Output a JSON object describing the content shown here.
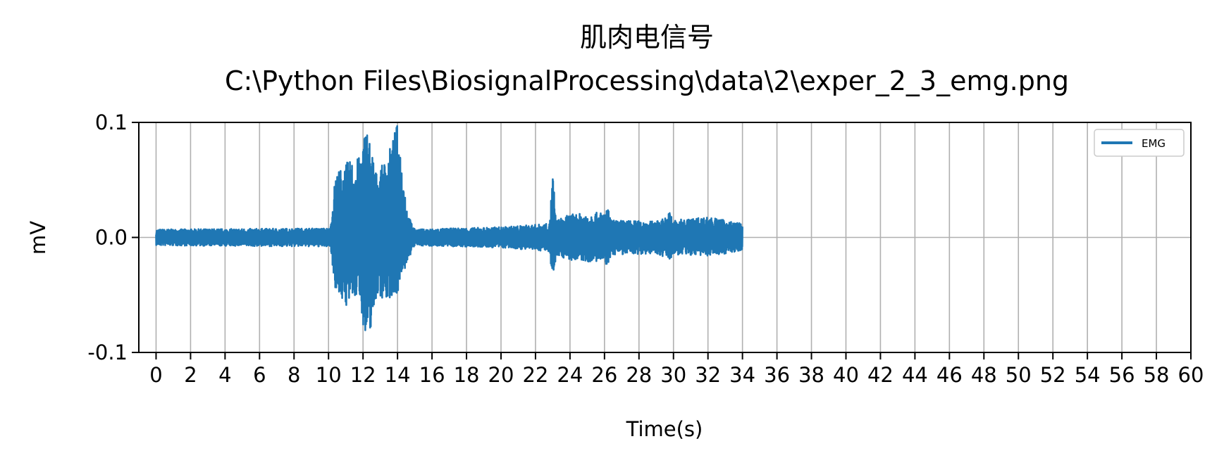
{
  "chart_data": {
    "type": "line",
    "title": "肌肉电信号",
    "subtitle": "C:\\Python Files\\BiosignalProcessing\\data\\2\\exper_2_3_emg.png",
    "xlabel": "Time(s)",
    "ylabel": "mV",
    "xlim": [
      -1,
      60
    ],
    "ylim": [
      -0.1,
      0.1
    ],
    "grid": true,
    "legend_position": "top-right",
    "x_ticks": [
      0,
      2,
      4,
      6,
      8,
      10,
      12,
      14,
      16,
      18,
      20,
      22,
      24,
      26,
      28,
      30,
      32,
      34,
      36,
      38,
      40,
      42,
      44,
      46,
      48,
      50,
      52,
      54,
      56,
      58,
      60
    ],
    "x_tick_labels": [
      "0",
      "2",
      "4",
      "6",
      "8",
      "10",
      "12",
      "14",
      "16",
      "18",
      "20",
      "22",
      "24",
      "26",
      "28",
      "30",
      "32",
      "34",
      "36",
      "38",
      "40",
      "42",
      "44",
      "46",
      "48",
      "50",
      "52",
      "54",
      "56",
      "58",
      "60"
    ],
    "y_ticks": [
      -0.1,
      0.0,
      0.1
    ],
    "y_tick_labels": [
      "-0.1",
      "0.0",
      "0.1"
    ],
    "signal_range_s": [
      0,
      34
    ],
    "series": [
      {
        "name": "EMG",
        "color": "#1f77b4",
        "envelope": {
          "t": [
            0,
            10.1,
            10.4,
            11.0,
            11.8,
            12.2,
            12.8,
            13.4,
            14.0,
            14.6,
            15.0,
            20.0,
            22.8,
            23.0,
            23.2,
            24.0,
            26.0,
            26.2,
            26.4,
            29.0,
            29.6,
            29.8,
            30.0,
            32.0,
            34.0
          ],
          "max": [
            0.007,
            0.008,
            0.055,
            0.065,
            0.07,
            0.1,
            0.055,
            0.07,
            0.1,
            0.02,
            0.007,
            0.009,
            0.012,
            0.058,
            0.015,
            0.02,
            0.022,
            0.025,
            0.015,
            0.014,
            0.018,
            0.023,
            0.015,
            0.018,
            0.012
          ],
          "min": [
            -0.007,
            -0.008,
            -0.045,
            -0.06,
            -0.05,
            -0.1,
            -0.05,
            -0.055,
            -0.048,
            -0.02,
            -0.007,
            -0.009,
            -0.012,
            -0.04,
            -0.015,
            -0.02,
            -0.022,
            -0.026,
            -0.015,
            -0.014,
            -0.018,
            -0.02,
            -0.015,
            -0.016,
            -0.012
          ]
        }
      }
    ]
  }
}
